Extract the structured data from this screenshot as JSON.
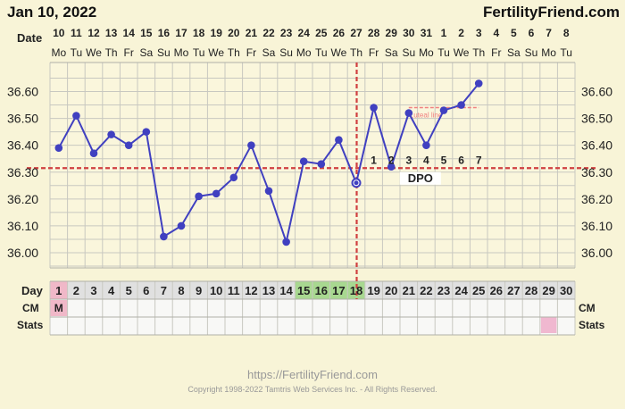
{
  "header": {
    "date": "Jan 10, 2022",
    "brand": "FertilityFriend.com"
  },
  "row_labels": {
    "date": "Date",
    "day": "Day",
    "cm": "CM",
    "stats": "Stats"
  },
  "calendar": {
    "dates": [
      "10",
      "11",
      "12",
      "13",
      "14",
      "15",
      "16",
      "17",
      "18",
      "19",
      "20",
      "21",
      "22",
      "23",
      "24",
      "25",
      "26",
      "27",
      "28",
      "29",
      "30",
      "31",
      "1",
      "2",
      "3",
      "4",
      "5",
      "6",
      "7",
      "8"
    ],
    "weekdays": [
      "Mo",
      "Tu",
      "We",
      "Th",
      "Fr",
      "Sa",
      "Su",
      "Mo",
      "Tu",
      "We",
      "Th",
      "Fr",
      "Sa",
      "Su",
      "Mo",
      "Tu",
      "We",
      "Th",
      "Fr",
      "Sa",
      "Su",
      "Mo",
      "Tu",
      "We",
      "Th",
      "Fr",
      "Sa",
      "Su",
      "Mo",
      "Tu"
    ],
    "days": [
      "1",
      "2",
      "3",
      "4",
      "5",
      "6",
      "7",
      "8",
      "9",
      "10",
      "11",
      "12",
      "13",
      "14",
      "15",
      "16",
      "17",
      "18",
      "19",
      "20",
      "21",
      "22",
      "23",
      "24",
      "25",
      "26",
      "27",
      "28",
      "29",
      "30"
    ],
    "cm": [
      "M"
    ],
    "fertile_days": [
      15,
      16,
      17,
      18
    ],
    "stats_marked_days": [
      29
    ]
  },
  "chart_data": {
    "type": "line",
    "x": [
      1,
      2,
      3,
      4,
      5,
      6,
      7,
      8,
      9,
      10,
      11,
      12,
      13,
      14,
      15,
      16,
      17,
      18,
      19,
      20,
      21,
      22,
      23,
      24,
      25
    ],
    "series": [
      {
        "values": [
          36.39,
          36.51,
          36.37,
          36.44,
          36.4,
          36.45,
          36.06,
          36.1,
          36.21,
          36.22,
          36.28,
          36.4,
          36.23,
          36.04,
          36.34,
          36.33,
          36.42,
          36.26,
          36.54,
          36.32,
          36.52,
          36.4,
          36.53,
          36.55,
          36.63
        ]
      }
    ],
    "y_ticks": [
      "36.60",
      "36.50",
      "36.40",
      "36.30",
      "36.20",
      "36.10",
      "36.00"
    ],
    "ylim": [
      35.9,
      36.7
    ],
    "coverline": 36.315,
    "ovulation_day": 18,
    "luteal_line": {
      "label": "Luteal line",
      "value": 36.54,
      "from_day": 21,
      "to_day": 25
    },
    "dpo_label": "DPO",
    "dpo_numbers": [
      "1",
      "2",
      "3",
      "4",
      "5",
      "6",
      "7"
    ],
    "grid": true,
    "colors": {
      "line": "#4040c0",
      "coverline": "#d04040",
      "luteal": "#f08080",
      "fertile": "#a8d890",
      "menses": "#f0b8c8",
      "stats_mark": "#f0b8d0"
    }
  },
  "footer": {
    "url": "https://FertilityFriend.com",
    "copyright": "Copyright 1998-2022 Tamtris Web Services Inc. - All Rights Reserved."
  }
}
